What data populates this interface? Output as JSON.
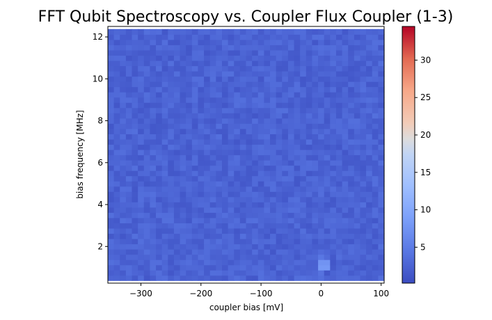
{
  "chart_data": {
    "type": "heatmap",
    "title": "FFT Qubit Spectroscopy vs. Coupler Flux  Coupler (1-3)",
    "xlabel": "coupler bias [mV]",
    "ylabel": "bias frequency [MHz]",
    "xlim": [
      -355,
      105
    ],
    "ylim": [
      0.25,
      12.5
    ],
    "x_ticks": [
      -300,
      -200,
      -100,
      0,
      100
    ],
    "x_tick_labels": [
      "−300",
      "−200",
      "−100",
      "0",
      "100"
    ],
    "y_ticks": [
      2,
      4,
      6,
      8,
      10,
      12
    ],
    "y_tick_labels": [
      "2",
      "4",
      "6",
      "8",
      "10",
      "12"
    ],
    "x_step_mv": 10,
    "y_step_mhz": 0.25,
    "colormap": "coolwarm",
    "colorbar": {
      "min": 0.2,
      "max": 34.5,
      "ticks": [
        5,
        10,
        15,
        20,
        25,
        30
      ],
      "tick_labels": [
        "5",
        "10",
        "15",
        "20",
        "25",
        "30"
      ]
    },
    "background_level": 2.5,
    "background_noise": 1.2,
    "hotspots": [
      {
        "x_mv": 0,
        "y_mhz": 1.0,
        "value": 8.0
      },
      {
        "x_mv": 10,
        "y_mhz": 1.0,
        "value": 8.0
      },
      {
        "x_mv": 0,
        "y_mhz": 1.25,
        "value": 7.5
      },
      {
        "x_mv": 10,
        "y_mhz": 1.25,
        "value": 7.5
      },
      {
        "x_mv": 0,
        "y_mhz": 1.5,
        "value": 4.5
      },
      {
        "x_mv": 0,
        "y_mhz": 0.75,
        "value": 4.0
      }
    ],
    "grid": false,
    "legend": "none"
  }
}
